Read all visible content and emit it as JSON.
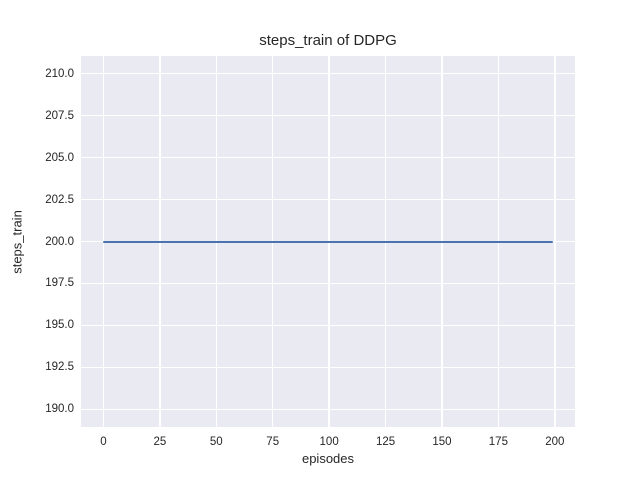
{
  "chart_data": {
    "type": "line",
    "title": "steps_train of DDPG",
    "xlabel": "episodes",
    "ylabel": "steps_train",
    "xlim": [
      -9.95,
      208.95
    ],
    "ylim": [
      188.95,
      211.05
    ],
    "xticks": {
      "values": [
        0,
        25,
        50,
        75,
        100,
        125,
        150,
        175,
        200
      ],
      "labels": [
        "0",
        "25",
        "50",
        "75",
        "100",
        "125",
        "150",
        "175",
        "200"
      ]
    },
    "yticks": {
      "values": [
        190.0,
        192.5,
        195.0,
        197.5,
        200.0,
        202.5,
        205.0,
        207.5,
        210.0
      ],
      "labels": [
        "190.0",
        "192.5",
        "195.0",
        "197.5",
        "200.0",
        "202.5",
        "205.0",
        "207.5",
        "210.0"
      ]
    },
    "grid": true,
    "legend": false,
    "series": [
      {
        "name": "steps_train",
        "x": [
          0,
          199
        ],
        "y": [
          200,
          200
        ]
      }
    ],
    "colors": {
      "axes_background": "#eaeaf2",
      "grid": "#ffffff",
      "line": "#4c72b0",
      "text": "#262626",
      "figure_background": "#ffffff"
    }
  }
}
